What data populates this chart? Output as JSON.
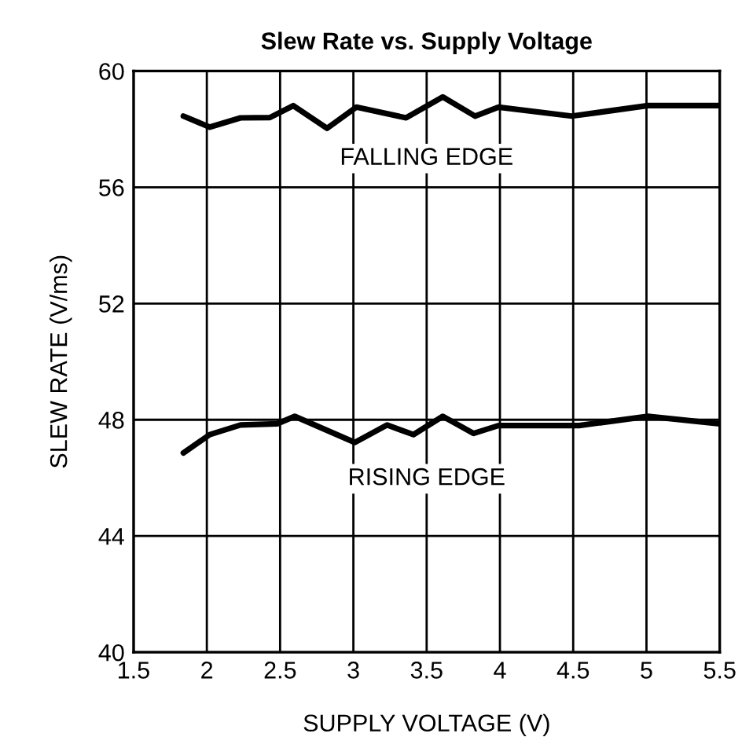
{
  "chart_data": {
    "type": "line",
    "title": "Slew Rate vs. Supply Voltage",
    "xlabel": "SUPPLY VOLTAGE (V)",
    "ylabel": "SLEW RATE (V/ms)",
    "xlim": [
      1.5,
      5.5
    ],
    "xticks": [
      1.5,
      2,
      2.5,
      3,
      3.5,
      4,
      4.5,
      5,
      5.5
    ],
    "ylim": [
      40,
      60
    ],
    "yticks": [
      40,
      44,
      48,
      52,
      56,
      60
    ],
    "grid": true,
    "series": [
      {
        "name": "FALLING EDGE",
        "color": "#000000",
        "x": [
          1.84,
          2.02,
          2.23,
          2.43,
          2.59,
          2.82,
          3.02,
          3.36,
          3.61,
          3.83,
          3.99,
          4.49,
          5.01,
          5.5
        ],
        "values": [
          58.45,
          58.07,
          58.39,
          58.4,
          58.81,
          58.03,
          58.76,
          58.39,
          59.11,
          58.45,
          58.76,
          58.45,
          58.81,
          58.81
        ]
      },
      {
        "name": "RISING EDGE",
        "color": "#000000",
        "x": [
          1.84,
          2.02,
          2.23,
          2.48,
          2.6,
          3.01,
          3.23,
          3.41,
          3.61,
          3.82,
          3.99,
          4.54,
          5.01,
          5.5
        ],
        "values": [
          46.86,
          47.49,
          47.82,
          47.86,
          48.12,
          47.22,
          47.82,
          47.49,
          48.12,
          47.53,
          47.8,
          47.8,
          48.12,
          47.86
        ]
      }
    ]
  }
}
